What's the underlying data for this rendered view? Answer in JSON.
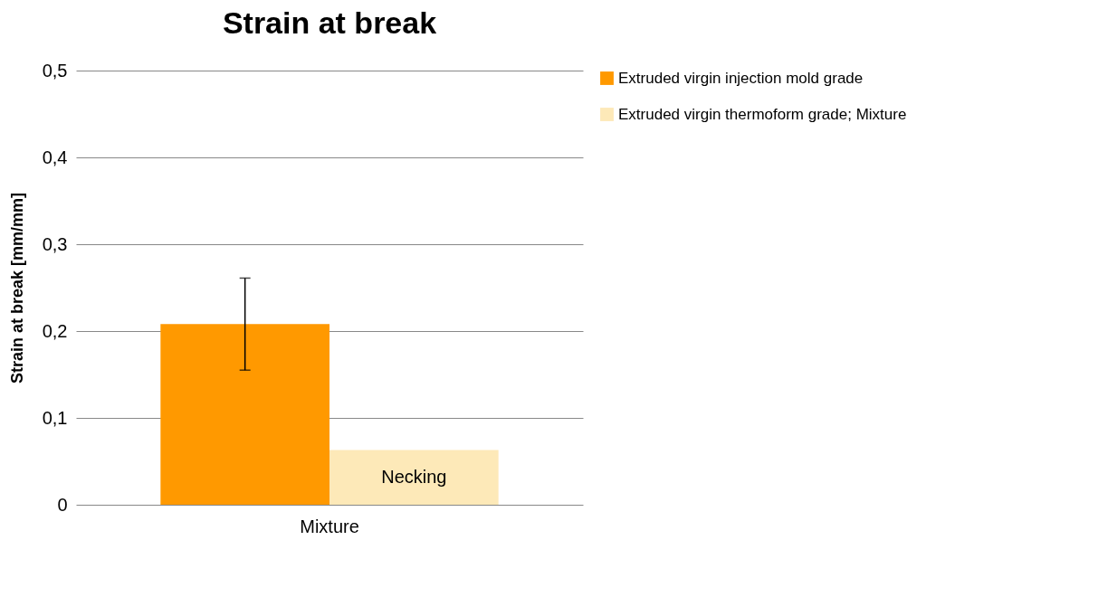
{
  "chart_data": {
    "type": "bar",
    "title": "Strain at break",
    "ylabel": "Strain  at break [mm/mm]",
    "categories": [
      "Mixture"
    ],
    "series": [
      {
        "name": "Extruded virgin injection mold grade",
        "color": "#ff9900",
        "values": [
          0.208
        ],
        "errors": [
          [
            0.155,
            0.261
          ]
        ]
      },
      {
        "name": "Extruded virgin thermoform grade; Mixture",
        "color": "#fde9b8",
        "values": [
          0.063
        ]
      }
    ],
    "annotations": [
      "Necking"
    ],
    "ylim": [
      0,
      0.5
    ],
    "yticks": [
      0,
      {
        "value": 0.1,
        "label": "0,1"
      },
      {
        "value": 0.2,
        "label": "0,2"
      },
      {
        "value": 0.3,
        "label": "0,3"
      },
      {
        "value": 0.4,
        "label": "0,4"
      },
      {
        "value": 0.5,
        "label": "0,5"
      }
    ],
    "grid": "y",
    "legend": "right"
  }
}
